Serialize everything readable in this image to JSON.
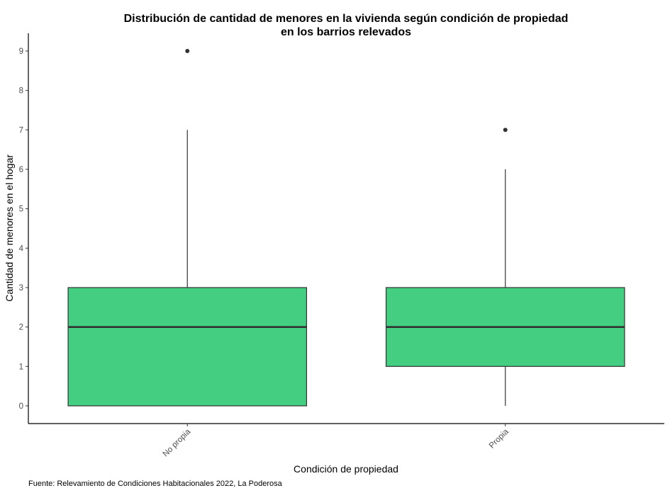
{
  "chart_data": {
    "type": "boxplot",
    "title": "Distribución de cantidad de menores en la vivienda según condición de propiedad",
    "subtitle": "en los barrios relevados",
    "xlabel": "Condición de propiedad",
    "ylabel": "Cantidad de menores en el hogar",
    "caption": "Fuente: Relevamiento de Condiciones Habitacionales 2022, La Poderosa",
    "categories": [
      "No propia",
      "Propia"
    ],
    "boxes": [
      {
        "category": "No propia",
        "min": 0,
        "q1": 0,
        "median": 2,
        "q3": 3,
        "max": 7,
        "outliers": [
          9
        ]
      },
      {
        "category": "Propia",
        "min": 0,
        "q1": 1,
        "median": 2,
        "q3": 3,
        "max": 6,
        "outliers": [
          7
        ]
      }
    ],
    "ylim": [
      -0.45,
      9.45
    ],
    "yticks": [
      0,
      1,
      2,
      3,
      4,
      5,
      6,
      7,
      8,
      9
    ],
    "ytick_labels": [
      "0",
      "1",
      "2",
      "3",
      "4",
      "5",
      "6",
      "7",
      "8",
      "9"
    ],
    "grid": false,
    "legend": "none",
    "colors": {
      "box_fill": "#43CE82",
      "box_stroke": "#333333",
      "axis": "#000000",
      "tick_text": "#4d4d4d"
    }
  }
}
